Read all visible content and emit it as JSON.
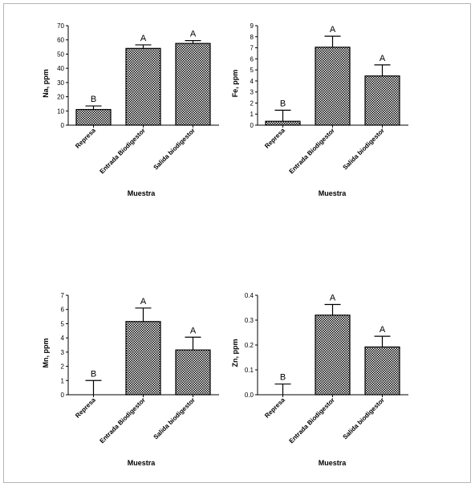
{
  "chart_data": [
    {
      "type": "bar",
      "ylabel": "Na, ppm",
      "xlabel": "Muestra",
      "categories": [
        "Represa",
        "Entrada Biodigestor",
        "Salida biodigestor"
      ],
      "values": [
        11,
        54,
        57.5
      ],
      "errors": [
        2.5,
        2.5,
        2
      ],
      "letters": [
        "B",
        "A",
        "A"
      ],
      "ylim": [
        0,
        70
      ],
      "yticks": [
        "0",
        "10",
        "20",
        "30",
        "40",
        "50",
        "60",
        "70"
      ],
      "fill_pattern": "checkered"
    },
    {
      "type": "bar",
      "ylabel": "Fe, ppm",
      "xlabel": "Muestra",
      "categories": [
        "Represa",
        "Entrada Biodigestor",
        "Salida biodigestor"
      ],
      "values": [
        0.35,
        7.05,
        4.45
      ],
      "errors": [
        1.0,
        1.0,
        1.0
      ],
      "letters": [
        "B",
        "A",
        "A"
      ],
      "ylim": [
        0,
        9
      ],
      "yticks": [
        "0",
        "1",
        "2",
        "3",
        "4",
        "5",
        "6",
        "7",
        "8",
        "9"
      ],
      "fill_pattern": "checkered"
    },
    {
      "type": "bar",
      "ylabel": "Mn, ppm",
      "xlabel": "Muestra",
      "categories": [
        "Represa",
        "Entrada Biodigestor",
        "Salida biodigestor"
      ],
      "values": [
        0.0,
        5.15,
        3.15
      ],
      "errors": [
        1.0,
        0.95,
        0.9
      ],
      "letters": [
        "B",
        "A",
        "A"
      ],
      "ylim": [
        0,
        7
      ],
      "yticks": [
        "0",
        "1",
        "2",
        "3",
        "4",
        "5",
        "6",
        "7"
      ],
      "fill_pattern": "checkered"
    },
    {
      "type": "bar",
      "ylabel": "Zn, ppm",
      "xlabel": "Muestra",
      "categories": [
        "Represa",
        "Entrada Biodigestor",
        "Salida biodigestor"
      ],
      "values": [
        0.0,
        0.32,
        0.192
      ],
      "errors": [
        0.043,
        0.043,
        0.043
      ],
      "letters": [
        "B",
        "A",
        "A"
      ],
      "ylim": [
        0,
        0.4
      ],
      "yticks": [
        "0.0",
        "0.1",
        "0.2",
        "0.3",
        "0.4"
      ],
      "fill_pattern": "checkered"
    }
  ]
}
